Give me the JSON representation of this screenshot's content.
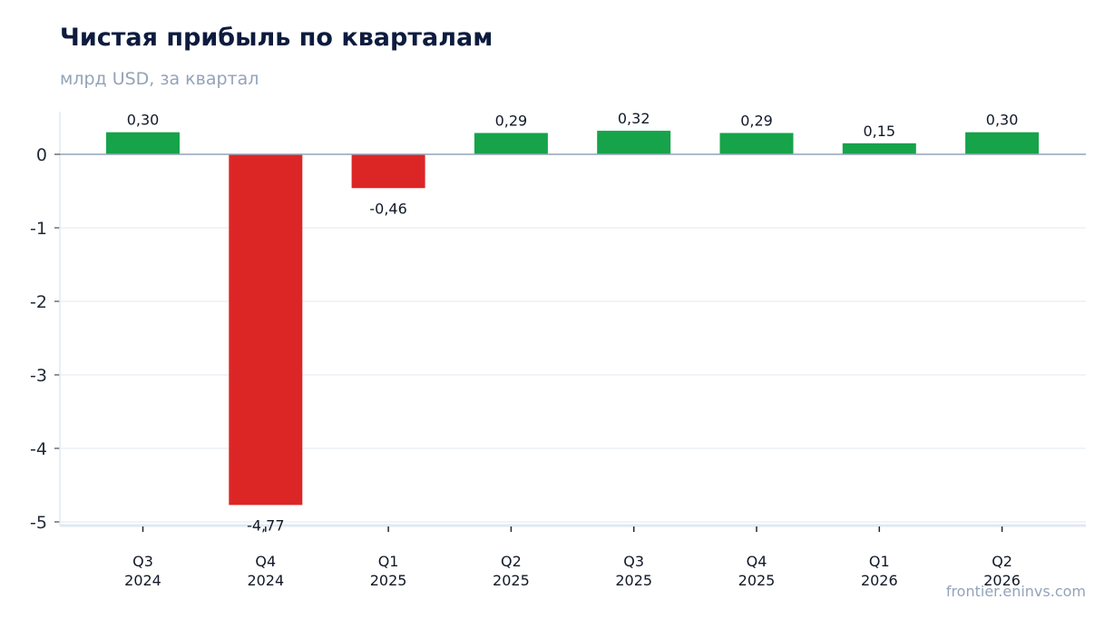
{
  "header": {
    "title": "Чистая прибыль по кварталам",
    "subtitle": "млрд USD, за квартал"
  },
  "footer": {
    "source": "frontier.eninvs.com"
  },
  "colors": {
    "positive": "#16a34a",
    "negative": "#dc2626",
    "grid": "#e2e8f0",
    "zero_line": "#94a3b8"
  },
  "chart_data": {
    "type": "bar",
    "title": "Чистая прибыль по кварталам",
    "subtitle": "млрд USD, за квартал",
    "xlabel": "",
    "ylabel": "",
    "categories": [
      [
        "Q3",
        "2024"
      ],
      [
        "Q4",
        "2024"
      ],
      [
        "Q1",
        "2025"
      ],
      [
        "Q2",
        "2025"
      ],
      [
        "Q3",
        "2025"
      ],
      [
        "Q4",
        "2025"
      ],
      [
        "Q1",
        "2026"
      ],
      [
        "Q2",
        "2026"
      ]
    ],
    "values": [
      0.3,
      -4.77,
      -0.46,
      0.29,
      0.32,
      0.29,
      0.15,
      0.3
    ],
    "value_labels": [
      "0,30",
      "-4,77",
      "-0,46",
      "0,29",
      "0,32",
      "0,29",
      "0,15",
      "0,30"
    ],
    "yticks": [
      0,
      -1,
      -2,
      -3,
      -4,
      -5
    ],
    "ylim": [
      -5.05,
      0.58
    ],
    "grid": true,
    "legend": "none"
  }
}
